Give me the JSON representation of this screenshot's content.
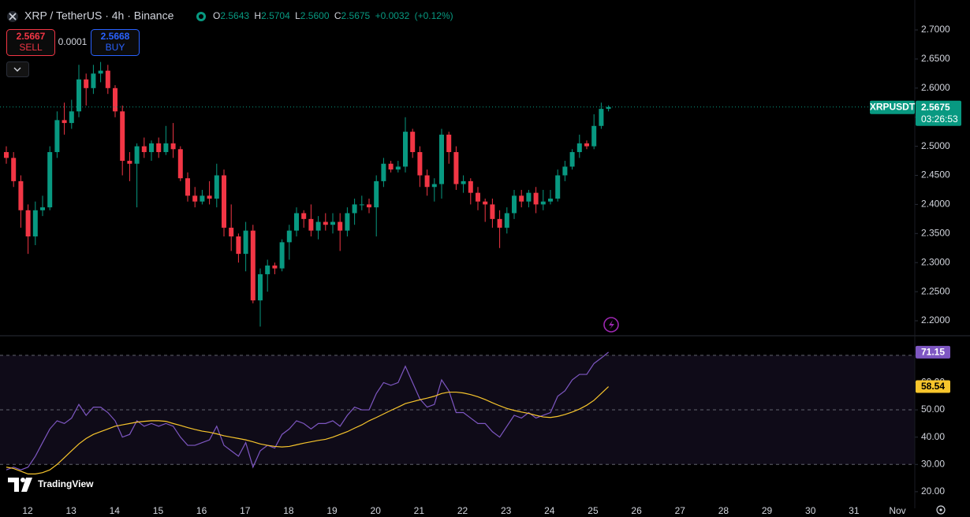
{
  "chart_data": {
    "type": "candlestick",
    "title": "XRP / TetherUS · 4h · Binance",
    "ohlc_legend": [
      {
        "label": "O",
        "value": "2.5643"
      },
      {
        "label": "H",
        "value": "2.5704"
      },
      {
        "label": "L",
        "value": "2.5600"
      },
      {
        "label": "C",
        "value": "2.5675"
      }
    ],
    "change": "+0.0032",
    "change_pct": "(+0.12%)",
    "sell": {
      "price": "2.5667",
      "label": "SELL"
    },
    "spread": "0.0001",
    "buy": {
      "price": "2.5668",
      "label": "BUY"
    },
    "symbol_label": "XRPUSDT",
    "countdown": "03:26:53",
    "logo": "TradingView",
    "categories": [
      "12",
      "13",
      "14",
      "15",
      "16",
      "17",
      "18",
      "19",
      "20",
      "21",
      "22",
      "23",
      "24",
      "25",
      "26",
      "27",
      "28",
      "29",
      "30",
      "31",
      "Nov"
    ],
    "candles": {
      "open": [
        2.49,
        2.48,
        2.44,
        2.39,
        2.345,
        2.39,
        2.395,
        2.49,
        2.545,
        2.54,
        2.56,
        2.615,
        2.6,
        2.625,
        2.63,
        2.6,
        2.56,
        2.475,
        2.47,
        2.5,
        2.49,
        2.505,
        2.49,
        2.505,
        2.495,
        2.445,
        2.415,
        2.405,
        2.415,
        2.41,
        2.45,
        2.36,
        2.345,
        2.315,
        2.355,
        2.235,
        2.28,
        2.295,
        2.29,
        2.335,
        2.355,
        2.385,
        2.375,
        2.355,
        2.37,
        2.365,
        2.37,
        2.355,
        2.385,
        2.4,
        2.4,
        2.395,
        2.44,
        2.47,
        2.46,
        2.465,
        2.525,
        2.49,
        2.45,
        2.43,
        2.435,
        2.52,
        2.49,
        2.435,
        2.44,
        2.42,
        2.405,
        2.4,
        2.375,
        2.36,
        2.385,
        2.415,
        2.405,
        2.42,
        2.4,
        2.405,
        2.41,
        2.45,
        2.465,
        2.49,
        2.505,
        2.5,
        2.535,
        2.5643
      ],
      "high": [
        2.5,
        2.49,
        2.45,
        2.4,
        2.405,
        2.415,
        2.5,
        2.56,
        2.575,
        2.58,
        2.64,
        2.625,
        2.64,
        2.645,
        2.64,
        2.605,
        2.57,
        2.49,
        2.505,
        2.515,
        2.51,
        2.515,
        2.535,
        2.54,
        2.5,
        2.455,
        2.43,
        2.425,
        2.44,
        2.47,
        2.46,
        2.4,
        2.35,
        2.37,
        2.365,
        2.29,
        2.305,
        2.3,
        2.34,
        2.365,
        2.395,
        2.39,
        2.4,
        2.38,
        2.385,
        2.385,
        2.385,
        2.395,
        2.41,
        2.415,
        2.41,
        2.45,
        2.48,
        2.475,
        2.475,
        2.55,
        2.53,
        2.5,
        2.46,
        2.445,
        2.53,
        2.525,
        2.5,
        2.45,
        2.445,
        2.43,
        2.41,
        2.41,
        2.39,
        2.395,
        2.425,
        2.425,
        2.425,
        2.43,
        2.425,
        2.425,
        2.46,
        2.475,
        2.495,
        2.52,
        2.51,
        2.555,
        2.575,
        2.5704
      ],
      "low": [
        2.47,
        2.43,
        2.36,
        2.315,
        2.33,
        2.38,
        2.39,
        2.48,
        2.52,
        2.53,
        2.55,
        2.57,
        2.59,
        2.61,
        2.59,
        2.55,
        2.45,
        2.44,
        2.395,
        2.48,
        2.475,
        2.48,
        2.485,
        2.48,
        2.44,
        2.405,
        2.395,
        2.4,
        2.4,
        2.395,
        2.345,
        2.32,
        2.3,
        2.285,
        2.23,
        2.19,
        2.25,
        2.28,
        2.285,
        2.305,
        2.345,
        2.36,
        2.345,
        2.34,
        2.355,
        2.35,
        2.32,
        2.345,
        2.365,
        2.39,
        2.385,
        2.345,
        2.43,
        2.455,
        2.455,
        2.455,
        2.48,
        2.43,
        2.415,
        2.405,
        2.41,
        2.47,
        2.425,
        2.42,
        2.4,
        2.39,
        2.37,
        2.36,
        2.325,
        2.35,
        2.375,
        2.395,
        2.395,
        2.385,
        2.39,
        2.4,
        2.405,
        2.44,
        2.46,
        2.48,
        2.495,
        2.495,
        2.53,
        2.56
      ],
      "close": [
        2.48,
        2.44,
        2.39,
        2.345,
        2.39,
        2.395,
        2.49,
        2.545,
        2.54,
        2.56,
        2.615,
        2.6,
        2.625,
        2.63,
        2.6,
        2.56,
        2.475,
        2.47,
        2.5,
        2.49,
        2.505,
        2.49,
        2.505,
        2.495,
        2.445,
        2.415,
        2.405,
        2.415,
        2.41,
        2.45,
        2.36,
        2.345,
        2.315,
        2.355,
        2.235,
        2.28,
        2.295,
        2.29,
        2.335,
        2.355,
        2.385,
        2.375,
        2.355,
        2.37,
        2.365,
        2.37,
        2.355,
        2.385,
        2.4,
        2.4,
        2.395,
        2.44,
        2.47,
        2.46,
        2.465,
        2.525,
        2.49,
        2.45,
        2.43,
        2.435,
        2.52,
        2.49,
        2.435,
        2.44,
        2.42,
        2.405,
        2.4,
        2.375,
        2.36,
        2.385,
        2.415,
        2.405,
        2.42,
        2.4,
        2.405,
        2.41,
        2.45,
        2.465,
        2.49,
        2.505,
        2.5,
        2.535,
        2.5643,
        2.5675
      ]
    },
    "up_color": "#089981",
    "down_color": "#f23645",
    "ylim": [
      2.1756,
      2.7515
    ],
    "yticks": [
      {
        "value": 2.2,
        "label": "2.2000"
      },
      {
        "value": 2.25,
        "label": "2.2500"
      },
      {
        "value": 2.3,
        "label": "2.3000"
      },
      {
        "value": 2.35,
        "label": "2.3500"
      },
      {
        "value": 2.4,
        "label": "2.4000"
      },
      {
        "value": 2.45,
        "label": "2.4500"
      },
      {
        "value": 2.5,
        "label": "2.5000"
      },
      {
        "value": 2.55,
        "label": "2.5500"
      },
      {
        "value": 2.6,
        "label": "2.6000"
      },
      {
        "value": 2.65,
        "label": "2.6500"
      },
      {
        "value": 2.7,
        "label": "2.7000"
      }
    ],
    "last_price_line": true,
    "indicator": {
      "type": "line",
      "ylim": [
        13.9,
        76.6
      ],
      "yticks": [
        {
          "value": 20,
          "label": "20.00"
        },
        {
          "value": 30,
          "label": "30.00"
        },
        {
          "value": 40,
          "label": "40.00"
        },
        {
          "value": 50,
          "label": "50.00"
        },
        {
          "value": 60,
          "label": "60.00"
        },
        {
          "value": 70,
          "label": "70.00"
        }
      ],
      "levels": [
        30,
        50,
        70
      ],
      "band": [
        30,
        70
      ],
      "series": [
        {
          "color": "#7e57c2",
          "values": [
            28,
            29,
            28,
            29,
            33,
            38,
            43,
            46,
            45,
            47,
            52,
            48,
            51,
            51,
            49,
            46,
            40,
            41,
            46,
            44,
            45,
            44,
            45,
            44,
            40,
            37,
            37,
            38,
            39,
            44,
            37,
            35,
            33,
            38,
            29,
            35,
            37,
            36,
            41,
            43,
            46,
            45,
            43,
            45,
            45,
            46,
            44,
            48,
            51,
            50,
            50,
            56,
            60,
            59,
            60,
            66,
            60,
            54,
            51,
            52,
            61,
            57,
            49,
            49,
            47,
            45,
            45,
            42,
            40,
            44,
            48,
            47,
            49,
            47,
            48,
            49,
            55,
            57,
            61,
            63,
            63,
            67,
            69,
            71.15
          ]
        },
        {
          "color": "#f7c52c",
          "values": [
            29,
            28.5,
            27.5,
            26.5,
            26.5,
            27,
            28,
            30,
            32.5,
            35,
            37.5,
            39.5,
            41,
            42,
            43,
            44,
            44.5,
            45,
            45.5,
            45.8,
            46,
            46,
            45.8,
            45,
            44.3,
            43.5,
            42.8,
            42.2,
            41.8,
            41.2,
            40.5,
            40,
            39.5,
            39,
            38.3,
            37.5,
            37,
            36.6,
            36.4,
            36.6,
            37.2,
            37.8,
            38.3,
            38.8,
            39.2,
            40,
            41,
            42,
            43.3,
            44.5,
            46,
            47.2,
            48.5,
            49.8,
            51,
            52.3,
            53,
            53.7,
            54.3,
            55,
            56,
            56.5,
            56.5,
            56.2,
            55.6,
            54.8,
            53.8,
            52.6,
            51.5,
            50.5,
            49.8,
            49.2,
            48.7,
            48,
            47.4,
            47.2,
            47.6,
            48.3,
            49.2,
            50.3,
            51.7,
            53.5,
            56,
            58.54
          ]
        }
      ]
    }
  }
}
